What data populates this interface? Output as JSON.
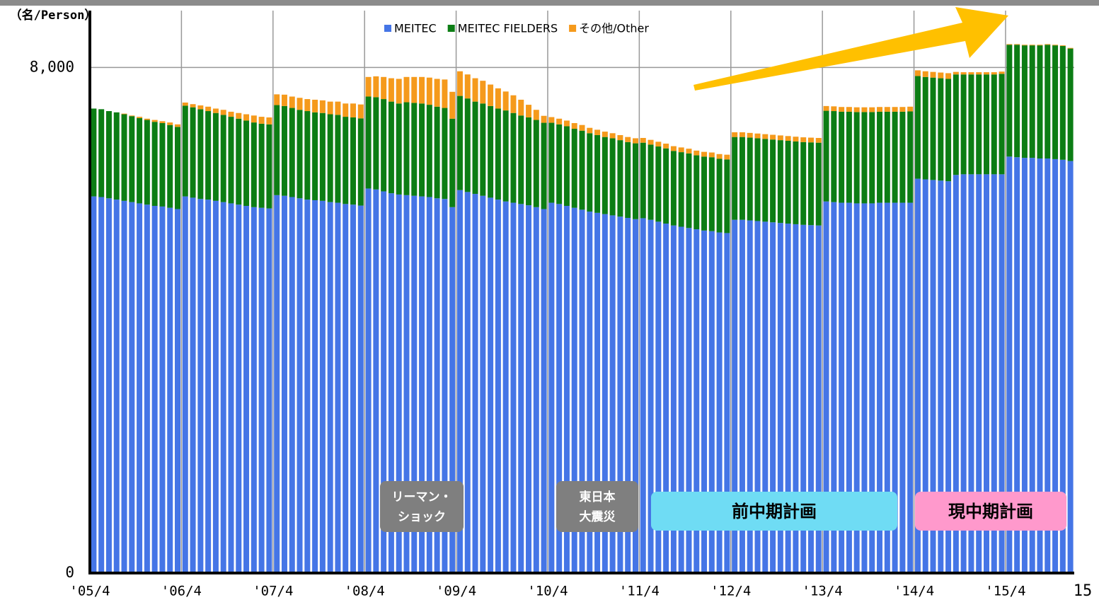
{
  "chart_data": {
    "type": "stacked_bar",
    "y_axis_label": "（名/Person）",
    "x_axis_end_label": "15",
    "ylim": [
      0,
      8900
    ],
    "yticks": [
      0,
      {
        "value": 8000,
        "label": "8,000"
      }
    ],
    "grid": true,
    "legend": "top",
    "annotations": {
      "lehman": [
        "リーマン・",
        "ショック"
      ],
      "earthquake": [
        "東日本",
        "大震災"
      ],
      "previous_plan": "前中期計画",
      "current_plan": "現中期計画"
    },
    "categories": [
      "'05/4",
      null,
      null,
      null,
      null,
      null,
      null,
      null,
      null,
      null,
      null,
      null,
      "'06/4",
      null,
      null,
      null,
      null,
      null,
      null,
      null,
      null,
      null,
      null,
      null,
      "'07/4",
      null,
      null,
      null,
      null,
      null,
      null,
      null,
      null,
      null,
      null,
      null,
      "'08/4",
      null,
      null,
      null,
      null,
      null,
      null,
      null,
      null,
      null,
      null,
      null,
      "'09/4",
      null,
      null,
      null,
      null,
      null,
      null,
      null,
      null,
      null,
      null,
      null,
      "'10/4",
      null,
      null,
      null,
      null,
      null,
      null,
      null,
      null,
      null,
      null,
      null,
      "'11/4",
      null,
      null,
      null,
      null,
      null,
      null,
      null,
      null,
      null,
      null,
      null,
      "'12/4",
      null,
      null,
      null,
      null,
      null,
      null,
      null,
      null,
      null,
      null,
      null,
      "'13/4",
      null,
      null,
      null,
      null,
      null,
      null,
      null,
      null,
      null,
      null,
      null,
      "'14/4",
      null,
      null,
      null,
      null,
      null,
      null,
      null,
      null,
      null,
      null,
      null,
      "'15/4",
      null,
      null,
      null,
      null,
      null,
      null,
      null,
      null
    ],
    "series": [
      {
        "name": "MEITEC",
        "color": "#4575e6",
        "values": [
          5960,
          5950,
          5930,
          5910,
          5890,
          5870,
          5850,
          5830,
          5810,
          5800,
          5780,
          5760,
          5960,
          5940,
          5920,
          5910,
          5890,
          5870,
          5850,
          5830,
          5810,
          5790,
          5780,
          5770,
          5980,
          5970,
          5950,
          5930,
          5910,
          5900,
          5890,
          5870,
          5860,
          5840,
          5830,
          5815,
          6085,
          6070,
          6040,
          6010,
          5990,
          5980,
          5970,
          5960,
          5950,
          5930,
          5920,
          5790,
          6060,
          6030,
          6000,
          5970,
          5940,
          5910,
          5880,
          5860,
          5840,
          5820,
          5790,
          5760,
          5860,
          5840,
          5810,
          5780,
          5750,
          5720,
          5700,
          5680,
          5660,
          5640,
          5620,
          5600,
          5615,
          5590,
          5560,
          5530,
          5500,
          5480,
          5460,
          5440,
          5420,
          5410,
          5390,
          5380,
          5590,
          5590,
          5580,
          5570,
          5560,
          5550,
          5540,
          5530,
          5520,
          5510,
          5505,
          5500,
          5880,
          5870,
          5860,
          5860,
          5850,
          5850,
          5850,
          5860,
          5860,
          5860,
          5860,
          5860,
          6240,
          6230,
          6220,
          6210,
          6200,
          6300,
          6310,
          6310,
          6310,
          6310,
          6310,
          6310,
          6590,
          6580,
          6570,
          6570,
          6560,
          6560,
          6550,
          6540,
          6520
        ]
      },
      {
        "name": "MEITEC FIELDERS",
        "color": "#0c7d14",
        "values": [
          1390,
          1390,
          1380,
          1380,
          1370,
          1360,
          1350,
          1340,
          1330,
          1320,
          1310,
          1300,
          1435,
          1430,
          1420,
          1400,
          1390,
          1380,
          1370,
          1360,
          1350,
          1340,
          1330,
          1330,
          1425,
          1420,
          1410,
          1400,
          1400,
          1390,
          1390,
          1390,
          1390,
          1380,
          1380,
          1380,
          1455,
          1460,
          1460,
          1450,
          1440,
          1470,
          1470,
          1470,
          1460,
          1450,
          1440,
          1400,
          1490,
          1480,
          1460,
          1460,
          1450,
          1440,
          1440,
          1420,
          1400,
          1390,
          1380,
          1365,
          1265,
          1260,
          1260,
          1250,
          1250,
          1240,
          1230,
          1220,
          1220,
          1210,
          1200,
          1200,
          1195,
          1190,
          1190,
          1190,
          1180,
          1180,
          1180,
          1170,
          1170,
          1170,
          1165,
          1165,
          1310,
          1310,
          1310,
          1310,
          1310,
          1310,
          1310,
          1310,
          1310,
          1310,
          1310,
          1310,
          1435,
          1440,
          1440,
          1440,
          1445,
          1445,
          1445,
          1440,
          1440,
          1440,
          1440,
          1445,
          1625,
          1620,
          1620,
          1620,
          1620,
          1590,
          1580,
          1580,
          1580,
          1580,
          1580,
          1590,
          1770,
          1780,
          1780,
          1780,
          1790,
          1800,
          1800,
          1800,
          1780
        ]
      },
      {
        "name": "その他/Other",
        "color": "#f59a1c",
        "values": [
          0,
          0,
          0,
          0,
          10,
          10,
          20,
          20,
          30,
          30,
          40,
          40,
          50,
          50,
          60,
          70,
          70,
          80,
          80,
          90,
          100,
          110,
          110,
          110,
          170,
          180,
          180,
          190,
          190,
          200,
          200,
          200,
          210,
          210,
          220,
          220,
          310,
          330,
          350,
          370,
          390,
          400,
          410,
          420,
          430,
          440,
          450,
          425,
          390,
          380,
          370,
          360,
          340,
          320,
          300,
          280,
          250,
          200,
          160,
          110,
          90,
          90,
          90,
          90,
          90,
          85,
          85,
          85,
          80,
          80,
          80,
          80,
          75,
          75,
          75,
          75,
          75,
          75,
          75,
          75,
          75,
          75,
          75,
          75,
          75,
          75,
          75,
          75,
          75,
          75,
          75,
          75,
          75,
          75,
          75,
          75,
          75,
          75,
          75,
          75,
          75,
          75,
          75,
          75,
          75,
          75,
          75,
          75,
          90,
          90,
          90,
          90,
          90,
          40,
          35,
          35,
          35,
          35,
          35,
          35,
          10,
          10,
          10,
          10,
          10,
          10,
          10,
          10,
          10
        ]
      }
    ]
  }
}
